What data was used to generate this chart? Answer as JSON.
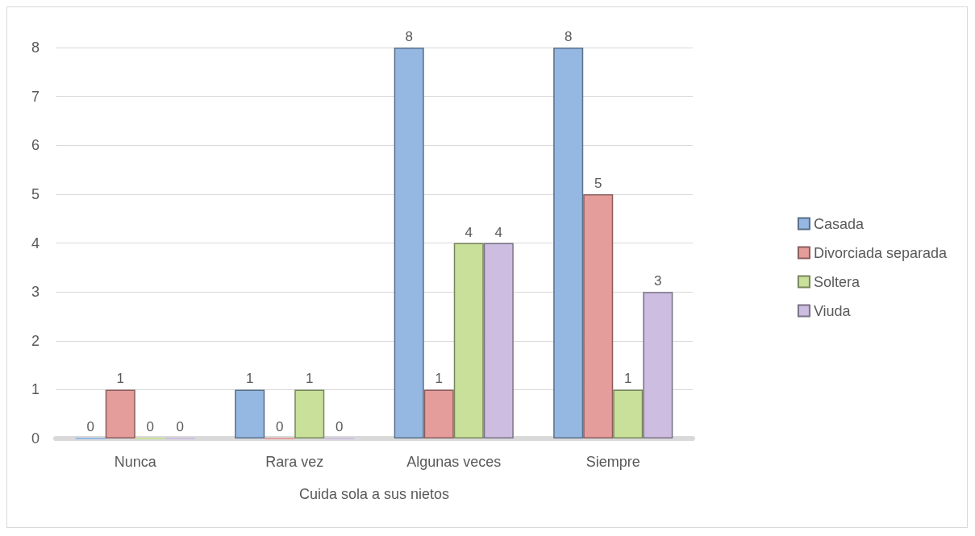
{
  "chart_data": {
    "type": "bar",
    "xlabel": "Cuida sola a sus nietos",
    "categories": [
      "Nunca",
      "Rara vez",
      "Algunas veces",
      "Siempre"
    ],
    "series": [
      {
        "name": "Casada",
        "color": "#95b8e3",
        "values": [
          0,
          1,
          8,
          8
        ]
      },
      {
        "name": "Divorciada separada",
        "color": "#e59d9b",
        "values": [
          1,
          0,
          1,
          5
        ]
      },
      {
        "name": "Soltera",
        "color": "#c8e09a",
        "values": [
          0,
          1,
          4,
          1
        ]
      },
      {
        "name": "Viuda",
        "color": "#cdbde0",
        "values": [
          0,
          0,
          4,
          3
        ]
      }
    ],
    "ylim": [
      0,
      8
    ],
    "yticks": [
      0,
      1,
      2,
      3,
      4,
      5,
      6,
      7,
      8
    ],
    "grid": "y",
    "legend": "right",
    "data_labels": true
  }
}
